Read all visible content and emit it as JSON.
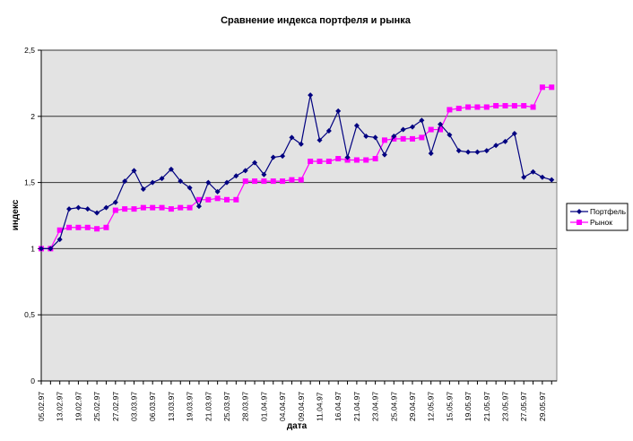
{
  "chart_data": {
    "type": "line",
    "title": "Сравнение индекса портфеля и рынка",
    "xlabel": "дата",
    "ylabel": "индекс",
    "ylim": [
      0,
      2.5
    ],
    "yticks": [
      0,
      0.5,
      1,
      1.5,
      2,
      2.5
    ],
    "ytick_labels": [
      "0",
      "0,5",
      "1",
      "1,5",
      "2",
      "2,5"
    ],
    "grid": true,
    "legend_position": "right",
    "x_tick_labels": [
      "05.02.97",
      "13.02.97",
      "19.02.97",
      "25.02.97",
      "27.02.97",
      "03.03.97",
      "06.03.97",
      "13.03.97",
      "19.03.97",
      "21.03.97",
      "25.03.97",
      "28.03.97",
      "01.04.97",
      "04.04.97",
      "09.04.97",
      "11.04.97",
      "16.04.97",
      "21.04.97",
      "23.04.97",
      "25.04.97",
      "29.04.97",
      "12.05.97",
      "15.05.97",
      "19.05.97",
      "21.05.97",
      "23.05.97",
      "27.05.97",
      "29.05.97"
    ],
    "series": [
      {
        "name": "Портфель",
        "color": "#000080",
        "marker": "diamond",
        "values": [
          1.0,
          1.0,
          1.07,
          1.3,
          1.31,
          1.3,
          1.27,
          1.31,
          1.35,
          1.51,
          1.59,
          1.45,
          1.5,
          1.53,
          1.6,
          1.51,
          1.46,
          1.32,
          1.5,
          1.43,
          1.5,
          1.55,
          1.59,
          1.65,
          1.56,
          1.69,
          1.7,
          1.84,
          1.79,
          2.16,
          1.82,
          1.89,
          2.04,
          1.69,
          1.93,
          1.85,
          1.84,
          1.71,
          1.85,
          1.9,
          1.92,
          1.97,
          1.72,
          1.94,
          1.86,
          1.74,
          1.73,
          1.73,
          1.74,
          1.78,
          1.81,
          1.87,
          1.54,
          1.58,
          1.54,
          1.52
        ]
      },
      {
        "name": "Рынок",
        "color": "#ff00ff",
        "marker": "square",
        "values": [
          1.0,
          1.0,
          1.14,
          1.16,
          1.16,
          1.16,
          1.15,
          1.16,
          1.29,
          1.3,
          1.3,
          1.31,
          1.31,
          1.31,
          1.3,
          1.31,
          1.31,
          1.37,
          1.37,
          1.38,
          1.37,
          1.37,
          1.51,
          1.51,
          1.51,
          1.51,
          1.51,
          1.52,
          1.52,
          1.66,
          1.66,
          1.66,
          1.68,
          1.67,
          1.67,
          1.67,
          1.68,
          1.82,
          1.83,
          1.83,
          1.83,
          1.84,
          1.9,
          1.9,
          2.05,
          2.06,
          2.07,
          2.07,
          2.07,
          2.08,
          2.08,
          2.08,
          2.08,
          2.07,
          2.22,
          2.22
        ]
      }
    ]
  }
}
